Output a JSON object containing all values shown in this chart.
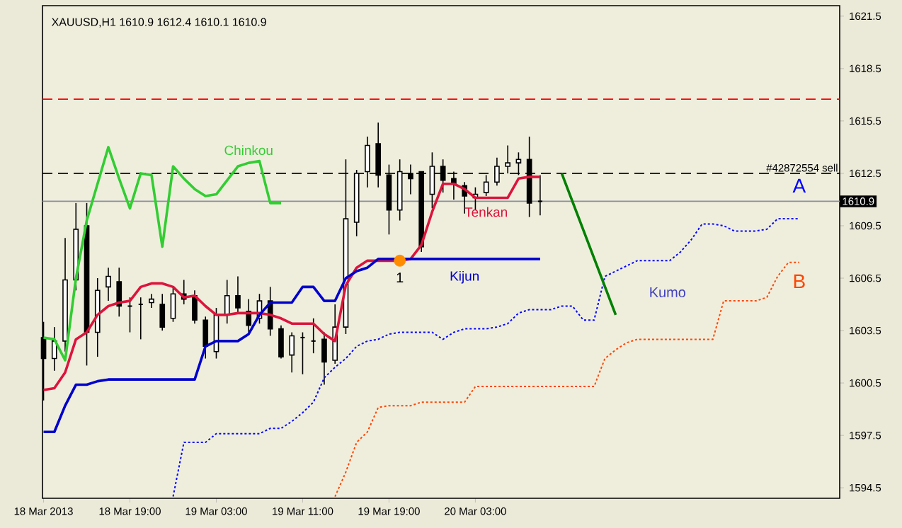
{
  "chart_data": {
    "type": "candlestick",
    "title": "XAUUSD,H1  1610.9 1612.4 1610.1 1610.9",
    "x": [
      "2013-03-18T11:00",
      "2013-03-18T12:00",
      "2013-03-18T13:00",
      "2013-03-18T14:00",
      "2013-03-18T15:00",
      "2013-03-18T16:00",
      "2013-03-18T17:00",
      "2013-03-18T18:00",
      "2013-03-18T19:00",
      "2013-03-18T20:00",
      "2013-03-18T21:00",
      "2013-03-18T22:00",
      "2013-03-18T23:00",
      "2013-03-19T00:00",
      "2013-03-19T01:00",
      "2013-03-19T02:00",
      "2013-03-19T03:00",
      "2013-03-19T04:00",
      "2013-03-19T05:00",
      "2013-03-19T06:00",
      "2013-03-19T07:00",
      "2013-03-19T08:00",
      "2013-03-19T09:00",
      "2013-03-19T10:00",
      "2013-03-19T11:00",
      "2013-03-19T12:00",
      "2013-03-19T13:00",
      "2013-03-19T14:00",
      "2013-03-19T15:00",
      "2013-03-19T16:00",
      "2013-03-19T17:00",
      "2013-03-19T18:00",
      "2013-03-19T19:00",
      "2013-03-19T20:00",
      "2013-03-19T21:00",
      "2013-03-19T22:00",
      "2013-03-19T23:00",
      "2013-03-20T00:00",
      "2013-03-20T01:00",
      "2013-03-20T02:00",
      "2013-03-20T03:00",
      "2013-03-20T04:00",
      "2013-03-20T05:00",
      "2013-03-20T06:00",
      "2013-03-20T07:00",
      "2013-03-20T08:00",
      "2013-03-20T09:00"
    ],
    "ohlc": [
      [
        1603.1,
        1604.0,
        1599.5,
        1601.9
      ],
      [
        1601.9,
        1603.7,
        1601.2,
        1602.9
      ],
      [
        1602.9,
        1608.8,
        1602.3,
        1606.4
      ],
      [
        1606.4,
        1610.8,
        1605.8,
        1609.3
      ],
      [
        1609.5,
        1610.8,
        1601.5,
        1603.4
      ],
      [
        1603.4,
        1606.5,
        1602.0,
        1605.8
      ],
      [
        1606.0,
        1607.1,
        1605.2,
        1606.6
      ],
      [
        1606.3,
        1607.1,
        1604.3,
        1604.9
      ],
      [
        1604.9,
        1605.4,
        1603.4,
        1604.9
      ],
      [
        1605.0,
        1605.4,
        1603.0,
        1605.0
      ],
      [
        1605.1,
        1605.6,
        1604.8,
        1605.3
      ],
      [
        1605.0,
        1605.6,
        1603.5,
        1603.7
      ],
      [
        1604.2,
        1606.0,
        1604.0,
        1605.6
      ],
      [
        1605.6,
        1606.4,
        1605.0,
        1605.3
      ],
      [
        1605.5,
        1605.8,
        1603.9,
        1604.1
      ],
      [
        1604.1,
        1604.3,
        1601.9,
        1602.6
      ],
      [
        1602.3,
        1604.8,
        1601.9,
        1604.4
      ],
      [
        1604.4,
        1606.4,
        1603.9,
        1605.5
      ],
      [
        1605.5,
        1606.6,
        1604.5,
        1604.8
      ],
      [
        1604.6,
        1605.3,
        1603.4,
        1603.8
      ],
      [
        1604.2,
        1605.6,
        1603.9,
        1605.2
      ],
      [
        1605.2,
        1606.0,
        1603.2,
        1603.6
      ],
      [
        1603.6,
        1603.8,
        1601.9,
        1602.0
      ],
      [
        1602.1,
        1603.4,
        1601.1,
        1603.2
      ],
      [
        1603.1,
        1603.4,
        1601.0,
        1603.1
      ],
      [
        1602.9,
        1604.2,
        1602.2,
        1602.9
      ],
      [
        1603.0,
        1603.4,
        1600.4,
        1601.7
      ],
      [
        1601.8,
        1605.0,
        1601.6,
        1603.7
      ],
      [
        1603.7,
        1613.3,
        1603.3,
        1609.9
      ],
      [
        1609.7,
        1612.7,
        1608.9,
        1612.5
      ],
      [
        1612.6,
        1614.6,
        1611.7,
        1614.1
      ],
      [
        1614.2,
        1615.4,
        1611.7,
        1612.4
      ],
      [
        1612.4,
        1613.0,
        1609.0,
        1610.4
      ],
      [
        1610.4,
        1613.3,
        1609.8,
        1612.6
      ],
      [
        1612.5,
        1613.0,
        1611.3,
        1612.2
      ],
      [
        1612.6,
        1612.6,
        1608.0,
        1608.3
      ],
      [
        1611.3,
        1613.7,
        1610.5,
        1612.9
      ],
      [
        1612.9,
        1613.3,
        1611.4,
        1612.1
      ],
      [
        1612.2,
        1612.6,
        1611.0,
        1611.9
      ],
      [
        1611.8,
        1612.0,
        1610.2,
        1611.2
      ],
      [
        1611.1,
        1611.7,
        1610.4,
        1611.3
      ],
      [
        1611.4,
        1612.4,
        1611.2,
        1612.0
      ],
      [
        1612.0,
        1613.4,
        1611.8,
        1612.9
      ],
      [
        1612.9,
        1614.1,
        1612.5,
        1613.1
      ],
      [
        1613.1,
        1613.7,
        1612.4,
        1613.3
      ],
      [
        1613.3,
        1614.6,
        1610.0,
        1610.8
      ],
      [
        1610.9,
        1612.4,
        1610.1,
        1610.9
      ]
    ],
    "series": [
      {
        "name": "Chinkou",
        "type": "line",
        "color": "#32cd32",
        "x": [
          "2013-03-18T11:00",
          "2013-03-18T12:00",
          "2013-03-18T13:00",
          "2013-03-18T14:00",
          "2013-03-18T15:00",
          "2013-03-18T16:00",
          "2013-03-18T17:00",
          "2013-03-18T18:00",
          "2013-03-18T19:00",
          "2013-03-18T20:00",
          "2013-03-18T21:00",
          "2013-03-18T22:00",
          "2013-03-18T23:00",
          "2013-03-19T00:00",
          "2013-03-19T01:00",
          "2013-03-19T02:00",
          "2013-03-19T03:00",
          "2013-03-19T04:00",
          "2013-03-19T05:00",
          "2013-03-19T06:00",
          "2013-03-19T07:00",
          "2013-03-19T08:00",
          "2013-03-19T09:00"
        ],
        "values": [
          1603.1,
          1603.0,
          1601.8,
          1606.5,
          1609.8,
          1611.9,
          1614.0,
          1612.2,
          1610.5,
          1612.5,
          1612.4,
          1608.3,
          1612.9,
          1612.2,
          1611.6,
          1611.2,
          1611.3,
          1612.1,
          1612.9,
          1613.1,
          1613.2,
          1610.8,
          1610.8
        ]
      },
      {
        "name": "Tenkan",
        "type": "line",
        "color": "#dc143c",
        "values": [
          1600.1,
          1600.2,
          1601.1,
          1603.0,
          1603.4,
          1604.4,
          1604.9,
          1605.1,
          1605.2,
          1606.0,
          1606.2,
          1606.2,
          1606.0,
          1605.4,
          1605.5,
          1604.9,
          1604.4,
          1604.4,
          1604.5,
          1604.5,
          1604.5,
          1604.4,
          1604.2,
          1603.9,
          1603.9,
          1603.9,
          1603.3,
          1602.9,
          1606.1,
          1607.1,
          1607.5,
          1607.5,
          1607.5,
          1607.5,
          1607.6,
          1608.4,
          1610.3,
          1611.9,
          1611.9,
          1611.6,
          1611.1,
          1611.1,
          1611.1,
          1611.1,
          1612.2,
          1612.3,
          1612.3
        ]
      },
      {
        "name": "Kijun",
        "type": "line",
        "color": "#0000cd",
        "values": [
          1597.7,
          1597.7,
          1599.2,
          1600.4,
          1600.4,
          1600.6,
          1600.7,
          1600.7,
          1600.7,
          1600.7,
          1600.7,
          1600.7,
          1600.7,
          1600.7,
          1600.7,
          1602.6,
          1602.9,
          1602.9,
          1602.9,
          1603.3,
          1604.4,
          1605.1,
          1605.1,
          1605.1,
          1606.0,
          1606.0,
          1605.2,
          1605.2,
          1606.5,
          1606.9,
          1607.1,
          1607.6,
          1607.6,
          1607.6,
          1607.6,
          1607.6,
          1607.6,
          1607.6,
          1607.6,
          1607.6,
          1607.6,
          1607.6,
          1607.6,
          1607.6,
          1607.6,
          1607.6,
          1607.6
        ]
      },
      {
        "name": "A",
        "type": "line",
        "color": "#0000ff",
        "line_style": "dotted",
        "x": [
          "2013-03-18T23:00",
          "2013-03-19T00:00",
          "2013-03-19T01:00",
          "2013-03-19T02:00",
          "2013-03-19T03:00",
          "2013-03-19T04:00",
          "2013-03-19T05:00",
          "2013-03-19T06:00",
          "2013-03-19T07:00",
          "2013-03-19T08:00",
          "2013-03-19T09:00",
          "2013-03-19T10:00",
          "2013-03-19T11:00",
          "2013-03-19T12:00",
          "2013-03-19T13:00",
          "2013-03-19T14:00",
          "2013-03-19T15:00",
          "2013-03-19T16:00",
          "2013-03-19T17:00",
          "2013-03-19T18:00",
          "2013-03-19T19:00",
          "2013-03-19T20:00",
          "2013-03-19T21:00",
          "2013-03-19T22:00",
          "2013-03-19T23:00",
          "2013-03-20T00:00",
          "2013-03-20T01:00",
          "2013-03-20T02:00",
          "2013-03-20T03:00",
          "2013-03-20T04:00",
          "2013-03-20T05:00",
          "2013-03-20T06:00",
          "2013-03-20T07:00",
          "2013-03-20T08:00",
          "2013-03-20T09:00",
          "2013-03-20T10:00",
          "2013-03-20T11:00",
          "2013-03-20T12:00",
          "2013-03-20T13:00",
          "2013-03-20T14:00",
          "2013-03-20T15:00",
          "2013-03-20T16:00",
          "2013-03-20T17:00",
          "2013-03-20T18:00",
          "2013-03-20T19:00",
          "2013-03-20T20:00",
          "2013-03-20T21:00",
          "2013-03-20T22:00",
          "2013-03-20T23:00",
          "2013-03-21T00:00",
          "2013-03-21T01:00",
          "2013-03-21T02:00",
          "2013-03-21T03:00",
          "2013-03-21T04:00",
          "2013-03-21T05:00",
          "2013-03-21T06:00",
          "2013-03-21T07:00",
          "2013-03-21T08:00",
          "2013-03-21T09:00"
        ],
        "values": [
          1594.0,
          1597.1,
          1597.1,
          1597.1,
          1597.6,
          1597.6,
          1597.6,
          1597.6,
          1597.6,
          1597.9,
          1597.9,
          1598.3,
          1598.8,
          1599.4,
          1600.8,
          1601.4,
          1601.9,
          1602.6,
          1602.9,
          1603.0,
          1603.3,
          1603.4,
          1603.4,
          1603.4,
          1603.4,
          1603.0,
          1603.4,
          1603.6,
          1603.6,
          1603.6,
          1603.7,
          1603.9,
          1604.5,
          1604.7,
          1604.7,
          1604.7,
          1604.9,
          1604.9,
          1604.1,
          1604.1,
          1606.6,
          1606.9,
          1607.2,
          1607.5,
          1607.5,
          1607.5,
          1607.5,
          1608.0,
          1608.7,
          1609.6,
          1609.6,
          1609.5,
          1609.2,
          1609.2,
          1609.2,
          1609.3,
          1609.9,
          1609.9,
          1609.9
        ]
      },
      {
        "name": "B",
        "type": "line",
        "color": "#ff4500",
        "line_style": "dotted",
        "x": [
          "2013-03-19T14:00",
          "2013-03-19T15:00",
          "2013-03-19T16:00",
          "2013-03-19T17:00",
          "2013-03-19T18:00",
          "2013-03-19T19:00",
          "2013-03-19T20:00",
          "2013-03-19T21:00",
          "2013-03-19T22:00",
          "2013-03-19T23:00",
          "2013-03-20T00:00",
          "2013-03-20T01:00",
          "2013-03-20T02:00",
          "2013-03-20T03:00",
          "2013-03-20T04:00",
          "2013-03-20T05:00",
          "2013-03-20T06:00",
          "2013-03-20T07:00",
          "2013-03-20T08:00",
          "2013-03-20T09:00",
          "2013-03-20T10:00",
          "2013-03-20T11:00",
          "2013-03-20T12:00",
          "2013-03-20T13:00",
          "2013-03-20T14:00",
          "2013-03-20T15:00",
          "2013-03-20T16:00",
          "2013-03-20T17:00",
          "2013-03-20T18:00",
          "2013-03-20T19:00",
          "2013-03-20T20:00",
          "2013-03-20T21:00",
          "2013-03-20T22:00",
          "2013-03-20T23:00",
          "2013-03-21T00:00",
          "2013-03-21T01:00",
          "2013-03-21T02:00",
          "2013-03-21T03:00",
          "2013-03-21T04:00",
          "2013-03-21T05:00",
          "2013-03-21T06:00",
          "2013-03-21T07:00",
          "2013-03-21T08:00",
          "2013-03-21T09:00"
        ],
        "values": [
          1594.0,
          1595.4,
          1597.1,
          1597.7,
          1599.1,
          1599.2,
          1599.2,
          1599.2,
          1599.4,
          1599.4,
          1599.4,
          1599.4,
          1599.4,
          1600.3,
          1600.3,
          1600.3,
          1600.3,
          1600.3,
          1600.3,
          1600.3,
          1600.3,
          1600.3,
          1600.3,
          1600.3,
          1600.3,
          1601.9,
          1602.4,
          1602.8,
          1603.0,
          1603.0,
          1603.0,
          1603.0,
          1603.0,
          1603.0,
          1603.0,
          1603.0,
          1605.2,
          1605.2,
          1605.2,
          1605.2,
          1605.4,
          1606.6,
          1607.4,
          1607.4
        ]
      },
      {
        "type": "line",
        "color": "#008000",
        "x": [
          "2013-03-20T11:00",
          "2013-03-20T16:00"
        ],
        "values": [
          1612.5,
          1604.4
        ]
      },
      {
        "type": "scatter",
        "color": "#ff8c00",
        "x": [
          "2013-03-19T20:00"
        ],
        "values": [
          1607.5
        ]
      }
    ],
    "ref_lines": [
      {
        "axis": "y",
        "value": 1616.75,
        "color": "#ff0000",
        "line_style": "dashed"
      },
      {
        "axis": "y",
        "value": 1612.5,
        "label": "#42872554 sell",
        "color": "#000000",
        "line_style": "dashed"
      },
      {
        "axis": "y",
        "value": 1610.9,
        "label": "1610.9",
        "color": "#8a9099",
        "line_style": "solid"
      }
    ],
    "annotations": [
      {
        "text": "1",
        "x": "2013-03-19T20:00",
        "y": 1607.5
      },
      "Kumo"
    ],
    "xlim": [
      "2013-03-18T10:54",
      "2013-03-21T12:45"
    ],
    "ylim": [
      1593.9,
      1622.1
    ],
    "xticks": [
      {
        "value": "2013-03-18T11:00",
        "label": "18 Mar 2013"
      },
      {
        "value": "2013-03-18T19:00",
        "label": "18 Mar 19:00"
      },
      {
        "value": "2013-03-19T03:00",
        "label": "19 Mar 03:00"
      },
      {
        "value": "2013-03-19T11:00",
        "label": "19 Mar 11:00"
      },
      {
        "value": "2013-03-19T19:00",
        "label": "19 Mar 19:00"
      },
      {
        "value": "2013-03-20T03:00",
        "label": "20 Mar 03:00"
      }
    ],
    "yticks": [
      1594.5,
      1597.5,
      1600.5,
      1603.5,
      1606.5,
      1609.5,
      1612.5,
      1615.5,
      1618.5,
      1621.5
    ]
  }
}
